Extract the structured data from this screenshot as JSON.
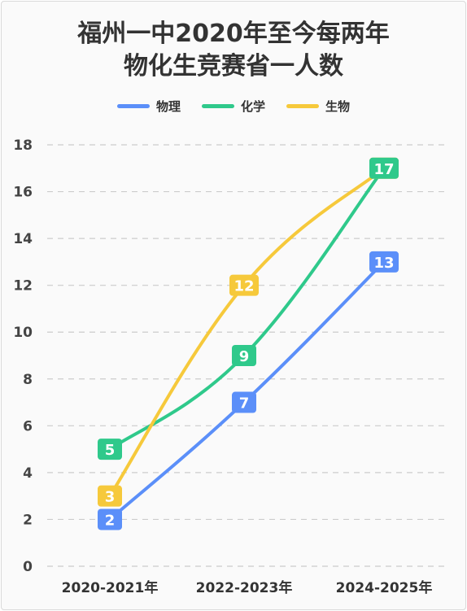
{
  "chart_data": {
    "type": "line",
    "title_lines": [
      "福州一中2020年至今每两年",
      "物化生竞赛省一人数"
    ],
    "categories": [
      "2020-2021年",
      "2022-2023年",
      "2024-2025年"
    ],
    "series": [
      {
        "name": "物理",
        "values": [
          2,
          7,
          13
        ],
        "color": "#5b8ff9"
      },
      {
        "name": "化学",
        "values": [
          5,
          9,
          17
        ],
        "color": "#2fc98b"
      },
      {
        "name": "生物",
        "values": [
          3,
          12,
          17
        ],
        "color": "#f6c93b"
      }
    ],
    "ylim": [
      0,
      18
    ],
    "yticks": [
      0,
      2,
      4,
      6,
      8,
      10,
      12,
      14,
      16,
      18
    ],
    "grid": true,
    "legend_position": "top-center"
  }
}
